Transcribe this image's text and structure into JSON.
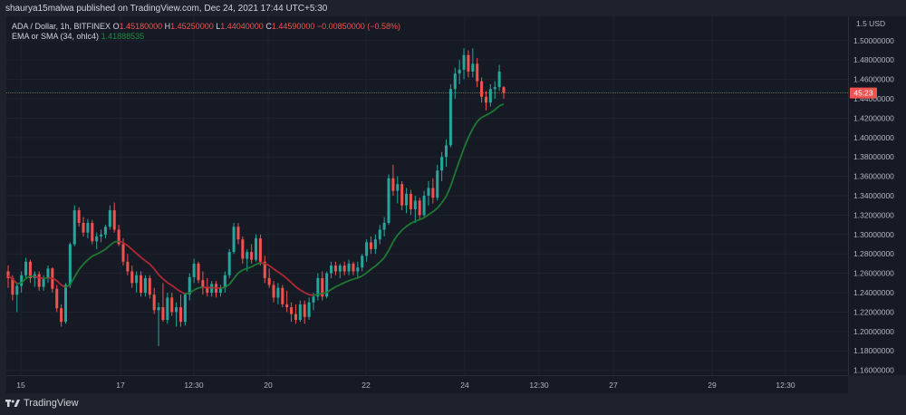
{
  "header": {
    "publisher": "shaurya15malwa published on TradingView.com, Dec 24, 2021 17:44 UTC+5:30"
  },
  "legend": {
    "symbol": "ADA / Dollar, 1h, BITFINEX",
    "open_key": "O",
    "open": "1.45180000",
    "high_key": "H",
    "high": "1.45250000",
    "low_key": "L",
    "low": "1.44040000",
    "close_key": "C",
    "close": "1.44590000",
    "change": "−0.00850000 (−0.58%)",
    "indicator": "EMA or SMA (34, ohlc4)",
    "indicator_value": "1.41888535"
  },
  "price_axis": {
    "unit_label": "1.5 USD",
    "ticks": [
      "1.50000000",
      "1.48000000",
      "1.46000000",
      "1.44000000",
      "1.42000000",
      "1.40000000",
      "1.38000000",
      "1.36000000",
      "1.34000000",
      "1.32000000",
      "1.30000000",
      "1.28000000",
      "1.26000000",
      "1.24000000",
      "1.22000000",
      "1.20000000",
      "1.18000000",
      "1.16000000"
    ],
    "current_price_label": "45:23",
    "current_price": 1.4459
  },
  "time_axis": {
    "labels": [
      "15",
      "17",
      "12:30",
      "20",
      "22",
      "24",
      "12:30",
      "27",
      "29",
      "12:30"
    ]
  },
  "footer": {
    "brand": "TradingView"
  },
  "colors": {
    "up": "#26a69a",
    "down": "#ef5350",
    "ema_below": "#1e7a32",
    "ema_above": "#b22833",
    "background": "#161a25",
    "text": "#d1d4dc",
    "price_line": "#ef5350"
  },
  "chart_data": {
    "type": "candlestick",
    "title": "ADA / Dollar, 1h, BITFINEX",
    "ylim": [
      1.155,
      1.525
    ],
    "candles": [
      {
        "o": 1.262,
        "h": 1.268,
        "l": 1.245,
        "c": 1.255
      },
      {
        "o": 1.255,
        "h": 1.258,
        "l": 1.232,
        "c": 1.238
      },
      {
        "o": 1.238,
        "h": 1.25,
        "l": 1.22,
        "c": 1.247
      },
      {
        "o": 1.247,
        "h": 1.262,
        "l": 1.24,
        "c": 1.258
      },
      {
        "o": 1.258,
        "h": 1.276,
        "l": 1.255,
        "c": 1.272
      },
      {
        "o": 1.272,
        "h": 1.274,
        "l": 1.25,
        "c": 1.255
      },
      {
        "o": 1.255,
        "h": 1.262,
        "l": 1.246,
        "c": 1.259
      },
      {
        "o": 1.259,
        "h": 1.262,
        "l": 1.242,
        "c": 1.246
      },
      {
        "o": 1.246,
        "h": 1.258,
        "l": 1.242,
        "c": 1.255
      },
      {
        "o": 1.255,
        "h": 1.268,
        "l": 1.25,
        "c": 1.265
      },
      {
        "o": 1.265,
        "h": 1.266,
        "l": 1.24,
        "c": 1.244
      },
      {
        "o": 1.244,
        "h": 1.248,
        "l": 1.22,
        "c": 1.224
      },
      {
        "o": 1.224,
        "h": 1.228,
        "l": 1.205,
        "c": 1.21
      },
      {
        "o": 1.21,
        "h": 1.25,
        "l": 1.208,
        "c": 1.248
      },
      {
        "o": 1.248,
        "h": 1.292,
        "l": 1.245,
        "c": 1.29
      },
      {
        "o": 1.29,
        "h": 1.33,
        "l": 1.288,
        "c": 1.325
      },
      {
        "o": 1.325,
        "h": 1.328,
        "l": 1.308,
        "c": 1.312
      },
      {
        "o": 1.312,
        "h": 1.318,
        "l": 1.298,
        "c": 1.302
      },
      {
        "o": 1.302,
        "h": 1.316,
        "l": 1.296,
        "c": 1.312
      },
      {
        "o": 1.312,
        "h": 1.315,
        "l": 1.29,
        "c": 1.293
      },
      {
        "o": 1.293,
        "h": 1.302,
        "l": 1.285,
        "c": 1.298
      },
      {
        "o": 1.298,
        "h": 1.305,
        "l": 1.292,
        "c": 1.3
      },
      {
        "o": 1.3,
        "h": 1.31,
        "l": 1.296,
        "c": 1.308
      },
      {
        "o": 1.308,
        "h": 1.33,
        "l": 1.305,
        "c": 1.325
      },
      {
        "o": 1.325,
        "h": 1.333,
        "l": 1.302,
        "c": 1.305
      },
      {
        "o": 1.305,
        "h": 1.31,
        "l": 1.288,
        "c": 1.29
      },
      {
        "o": 1.29,
        "h": 1.296,
        "l": 1.268,
        "c": 1.272
      },
      {
        "o": 1.272,
        "h": 1.28,
        "l": 1.258,
        "c": 1.262
      },
      {
        "o": 1.262,
        "h": 1.268,
        "l": 1.245,
        "c": 1.25
      },
      {
        "o": 1.25,
        "h": 1.262,
        "l": 1.24,
        "c": 1.258
      },
      {
        "o": 1.258,
        "h": 1.262,
        "l": 1.236,
        "c": 1.24
      },
      {
        "o": 1.24,
        "h": 1.258,
        "l": 1.236,
        "c": 1.255
      },
      {
        "o": 1.255,
        "h": 1.258,
        "l": 1.234,
        "c": 1.238
      },
      {
        "o": 1.238,
        "h": 1.245,
        "l": 1.218,
        "c": 1.222
      },
      {
        "o": 1.222,
        "h": 1.23,
        "l": 1.185,
        "c": 1.225
      },
      {
        "o": 1.225,
        "h": 1.25,
        "l": 1.21,
        "c": 1.212
      },
      {
        "o": 1.212,
        "h": 1.24,
        "l": 1.208,
        "c": 1.235
      },
      {
        "o": 1.235,
        "h": 1.24,
        "l": 1.216,
        "c": 1.22
      },
      {
        "o": 1.22,
        "h": 1.23,
        "l": 1.205,
        "c": 1.225
      },
      {
        "o": 1.225,
        "h": 1.238,
        "l": 1.205,
        "c": 1.21
      },
      {
        "o": 1.21,
        "h": 1.24,
        "l": 1.206,
        "c": 1.238
      },
      {
        "o": 1.238,
        "h": 1.26,
        "l": 1.232,
        "c": 1.256
      },
      {
        "o": 1.256,
        "h": 1.275,
        "l": 1.25,
        "c": 1.27
      },
      {
        "o": 1.27,
        "h": 1.272,
        "l": 1.25,
        "c": 1.253
      },
      {
        "o": 1.253,
        "h": 1.262,
        "l": 1.238,
        "c": 1.245
      },
      {
        "o": 1.245,
        "h": 1.255,
        "l": 1.236,
        "c": 1.24
      },
      {
        "o": 1.24,
        "h": 1.252,
        "l": 1.236,
        "c": 1.249
      },
      {
        "o": 1.249,
        "h": 1.252,
        "l": 1.235,
        "c": 1.24
      },
      {
        "o": 1.24,
        "h": 1.248,
        "l": 1.236,
        "c": 1.245
      },
      {
        "o": 1.245,
        "h": 1.262,
        "l": 1.24,
        "c": 1.258
      },
      {
        "o": 1.258,
        "h": 1.285,
        "l": 1.255,
        "c": 1.282
      },
      {
        "o": 1.282,
        "h": 1.312,
        "l": 1.28,
        "c": 1.308
      },
      {
        "o": 1.308,
        "h": 1.312,
        "l": 1.29,
        "c": 1.295
      },
      {
        "o": 1.295,
        "h": 1.298,
        "l": 1.27,
        "c": 1.275
      },
      {
        "o": 1.275,
        "h": 1.285,
        "l": 1.262,
        "c": 1.282
      },
      {
        "o": 1.282,
        "h": 1.29,
        "l": 1.27,
        "c": 1.274
      },
      {
        "o": 1.274,
        "h": 1.3,
        "l": 1.272,
        "c": 1.296
      },
      {
        "o": 1.296,
        "h": 1.3,
        "l": 1.268,
        "c": 1.272
      },
      {
        "o": 1.272,
        "h": 1.278,
        "l": 1.25,
        "c": 1.255
      },
      {
        "o": 1.255,
        "h": 1.265,
        "l": 1.245,
        "c": 1.248
      },
      {
        "o": 1.248,
        "h": 1.252,
        "l": 1.23,
        "c": 1.235
      },
      {
        "o": 1.235,
        "h": 1.25,
        "l": 1.228,
        "c": 1.245
      },
      {
        "o": 1.245,
        "h": 1.248,
        "l": 1.225,
        "c": 1.228
      },
      {
        "o": 1.228,
        "h": 1.242,
        "l": 1.22,
        "c": 1.225
      },
      {
        "o": 1.225,
        "h": 1.23,
        "l": 1.21,
        "c": 1.218
      },
      {
        "o": 1.218,
        "h": 1.228,
        "l": 1.208,
        "c": 1.212
      },
      {
        "o": 1.212,
        "h": 1.232,
        "l": 1.21,
        "c": 1.228
      },
      {
        "o": 1.228,
        "h": 1.232,
        "l": 1.208,
        "c": 1.215
      },
      {
        "o": 1.215,
        "h": 1.235,
        "l": 1.212,
        "c": 1.23
      },
      {
        "o": 1.23,
        "h": 1.24,
        "l": 1.222,
        "c": 1.236
      },
      {
        "o": 1.236,
        "h": 1.26,
        "l": 1.232,
        "c": 1.255
      },
      {
        "o": 1.255,
        "h": 1.262,
        "l": 1.232,
        "c": 1.236
      },
      {
        "o": 1.236,
        "h": 1.262,
        "l": 1.234,
        "c": 1.26
      },
      {
        "o": 1.26,
        "h": 1.272,
        "l": 1.255,
        "c": 1.268
      },
      {
        "o": 1.268,
        "h": 1.272,
        "l": 1.258,
        "c": 1.262
      },
      {
        "o": 1.262,
        "h": 1.27,
        "l": 1.255,
        "c": 1.268
      },
      {
        "o": 1.268,
        "h": 1.272,
        "l": 1.258,
        "c": 1.262
      },
      {
        "o": 1.262,
        "h": 1.274,
        "l": 1.258,
        "c": 1.27
      },
      {
        "o": 1.27,
        "h": 1.272,
        "l": 1.258,
        "c": 1.262
      },
      {
        "o": 1.262,
        "h": 1.272,
        "l": 1.255,
        "c": 1.266
      },
      {
        "o": 1.266,
        "h": 1.28,
        "l": 1.262,
        "c": 1.278
      },
      {
        "o": 1.278,
        "h": 1.295,
        "l": 1.272,
        "c": 1.292
      },
      {
        "o": 1.292,
        "h": 1.298,
        "l": 1.28,
        "c": 1.285
      },
      {
        "o": 1.285,
        "h": 1.3,
        "l": 1.28,
        "c": 1.295
      },
      {
        "o": 1.295,
        "h": 1.31,
        "l": 1.29,
        "c": 1.305
      },
      {
        "o": 1.305,
        "h": 1.318,
        "l": 1.298,
        "c": 1.312
      },
      {
        "o": 1.312,
        "h": 1.362,
        "l": 1.31,
        "c": 1.358
      },
      {
        "o": 1.358,
        "h": 1.372,
        "l": 1.34,
        "c": 1.345
      },
      {
        "o": 1.345,
        "h": 1.36,
        "l": 1.332,
        "c": 1.352
      },
      {
        "o": 1.352,
        "h": 1.355,
        "l": 1.325,
        "c": 1.33
      },
      {
        "o": 1.33,
        "h": 1.348,
        "l": 1.322,
        "c": 1.342
      },
      {
        "o": 1.342,
        "h": 1.346,
        "l": 1.32,
        "c": 1.326
      },
      {
        "o": 1.326,
        "h": 1.34,
        "l": 1.312,
        "c": 1.335
      },
      {
        "o": 1.335,
        "h": 1.338,
        "l": 1.315,
        "c": 1.32
      },
      {
        "o": 1.32,
        "h": 1.345,
        "l": 1.318,
        "c": 1.34
      },
      {
        "o": 1.34,
        "h": 1.355,
        "l": 1.33,
        "c": 1.348
      },
      {
        "o": 1.348,
        "h": 1.358,
        "l": 1.332,
        "c": 1.338
      },
      {
        "o": 1.338,
        "h": 1.372,
        "l": 1.335,
        "c": 1.366
      },
      {
        "o": 1.366,
        "h": 1.385,
        "l": 1.355,
        "c": 1.38
      },
      {
        "o": 1.38,
        "h": 1.398,
        "l": 1.37,
        "c": 1.392
      },
      {
        "o": 1.392,
        "h": 1.455,
        "l": 1.39,
        "c": 1.45
      },
      {
        "o": 1.45,
        "h": 1.472,
        "l": 1.44,
        "c": 1.466
      },
      {
        "o": 1.466,
        "h": 1.48,
        "l": 1.455,
        "c": 1.47
      },
      {
        "o": 1.47,
        "h": 1.492,
        "l": 1.46,
        "c": 1.485
      },
      {
        "o": 1.485,
        "h": 1.49,
        "l": 1.462,
        "c": 1.468
      },
      {
        "o": 1.468,
        "h": 1.492,
        "l": 1.462,
        "c": 1.476
      },
      {
        "o": 1.476,
        "h": 1.482,
        "l": 1.452,
        "c": 1.458
      },
      {
        "o": 1.458,
        "h": 1.462,
        "l": 1.436,
        "c": 1.442
      },
      {
        "o": 1.442,
        "h": 1.448,
        "l": 1.428,
        "c": 1.436
      },
      {
        "o": 1.436,
        "h": 1.455,
        "l": 1.432,
        "c": 1.45
      },
      {
        "o": 1.45,
        "h": 1.458,
        "l": 1.44,
        "c": 1.452
      },
      {
        "o": 1.452,
        "h": 1.475,
        "l": 1.448,
        "c": 1.468
      },
      {
        "o": 1.452,
        "h": 1.453,
        "l": 1.44,
        "c": 1.446
      }
    ],
    "series": [
      {
        "name": "EMA or SMA (34, ohlc4)"
      }
    ],
    "x_labels": [
      "15",
      "17",
      "12:30",
      "20",
      "22",
      "24",
      "12:30",
      "27",
      "29",
      "12:30"
    ]
  }
}
